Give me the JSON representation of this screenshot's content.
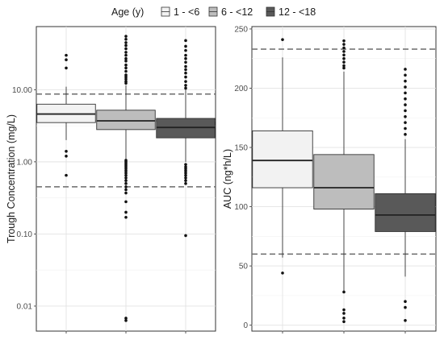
{
  "legend": {
    "title": "Age (y)",
    "items": [
      {
        "label": "1 - <6",
        "color": "#f2f2f2"
      },
      {
        "label": "6 - <12",
        "color": "#bdbdbd"
      },
      {
        "label": "12 - <18",
        "color": "#595959"
      }
    ]
  },
  "chart_data": [
    {
      "type": "box",
      "ylabel": "Trough Concentration (mg/L)",
      "xlabel": "",
      "yscale": "log",
      "ylim": [
        0.0045,
        75
      ],
      "yticks": [
        {
          "value": 0.01,
          "label": "0.01"
        },
        {
          "value": 0.1,
          "label": "0.10"
        },
        {
          "value": 1,
          "label": "1.00"
        },
        {
          "value": 10,
          "label": "10.00"
        }
      ],
      "grid": true,
      "reference_lines": [
        {
          "value": 8.7,
          "style": "dashed"
        },
        {
          "value": 0.45,
          "style": "dashed"
        },
        {
          "value": 3.7,
          "style": "dotted"
        }
      ],
      "series": [
        {
          "name": "1 - <6",
          "color": "#f2f2f2",
          "q1": 3.5,
          "median": 4.6,
          "q3": 6.3,
          "whisker_low": 2.0,
          "whisker_high": 11.0,
          "outliers": [
            30,
            26,
            20,
            1.4,
            1.2,
            0.65
          ]
        },
        {
          "name": "6 - <12",
          "color": "#bdbdbd",
          "q1": 2.8,
          "median": 3.7,
          "q3": 5.2,
          "whisker_low": 1.1,
          "whisker_high": 11.5,
          "outliers": [
            55,
            50,
            45,
            41,
            37,
            33,
            30,
            27,
            25,
            22,
            20,
            18,
            16,
            15,
            14,
            13,
            12.3,
            1.05,
            1.0,
            0.95,
            0.9,
            0.85,
            0.8,
            0.75,
            0.7,
            0.65,
            0.6,
            0.55,
            0.5,
            0.45,
            0.41,
            0.37,
            0.28,
            0.2,
            0.17,
            0.0068,
            0.0063
          ]
        },
        {
          "name": "12 - <18",
          "color": "#595959",
          "q1": 2.15,
          "median": 3.0,
          "q3": 4.0,
          "whisker_low": 1.0,
          "whisker_high": 10.0,
          "outliers": [
            48,
            40,
            35,
            30,
            27,
            24,
            21,
            19,
            17,
            15,
            13,
            11.5,
            10.5,
            0.92,
            0.85,
            0.8,
            0.75,
            0.7,
            0.65,
            0.6,
            0.55,
            0.5,
            0.095
          ]
        }
      ]
    },
    {
      "type": "box",
      "ylabel": "AUC (ng*h/L)",
      "xlabel": "",
      "yscale": "linear",
      "ylim": [
        -5,
        252
      ],
      "yticks": [
        {
          "value": 0,
          "label": "0"
        },
        {
          "value": 50,
          "label": "50"
        },
        {
          "value": 100,
          "label": "100"
        },
        {
          "value": 150,
          "label": "150"
        },
        {
          "value": 200,
          "label": "200"
        },
        {
          "value": 250,
          "label": "250"
        }
      ],
      "grid": true,
      "reference_lines": [
        {
          "value": 233,
          "style": "dashed"
        },
        {
          "value": 60,
          "style": "dashed"
        }
      ],
      "series": [
        {
          "name": "1 - <6",
          "color": "#f2f2f2",
          "q1": 116,
          "median": 139,
          "q3": 164,
          "whisker_low": 57,
          "whisker_high": 226,
          "outliers": [
            241,
            44
          ]
        },
        {
          "name": "6 - <12",
          "color": "#bdbdbd",
          "q1": 98,
          "median": 116,
          "q3": 144,
          "whisker_low": 28,
          "whisker_high": 214,
          "outliers": [
            240,
            237,
            234,
            231,
            228,
            225,
            222,
            219,
            217,
            28,
            13,
            10,
            6,
            3
          ]
        },
        {
          "name": "12 - <18",
          "color": "#595959",
          "q1": 79,
          "median": 93,
          "q3": 111,
          "whisker_low": 41,
          "whisker_high": 157,
          "outliers": [
            216,
            211,
            206,
            201,
            196,
            191,
            186,
            181,
            176,
            171,
            166,
            161,
            20,
            15,
            4
          ]
        }
      ]
    }
  ]
}
